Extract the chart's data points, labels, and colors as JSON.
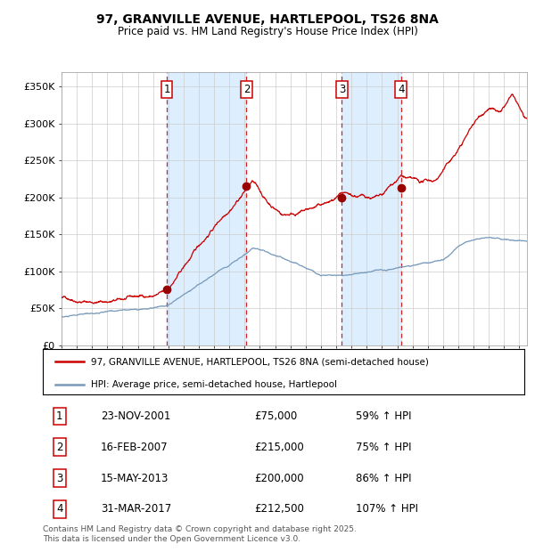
{
  "title": "97, GRANVILLE AVENUE, HARTLEPOOL, TS26 8NA",
  "subtitle": "Price paid vs. HM Land Registry's House Price Index (HPI)",
  "legend_line1": "97, GRANVILLE AVENUE, HARTLEPOOL, TS26 8NA (semi-detached house)",
  "legend_line2": "HPI: Average price, semi-detached house, Hartlepool",
  "footer": "Contains HM Land Registry data © Crown copyright and database right 2025.\nThis data is licensed under the Open Government Licence v3.0.",
  "transactions": [
    {
      "num": 1,
      "date": "23-NOV-2001",
      "price": 75000,
      "pct": "59%",
      "dir": "↑"
    },
    {
      "num": 2,
      "date": "16-FEB-2007",
      "price": 215000,
      "pct": "75%",
      "dir": "↑"
    },
    {
      "num": 3,
      "date": "15-MAY-2013",
      "price": 200000,
      "pct": "86%",
      "dir": "↑"
    },
    {
      "num": 4,
      "date": "31-MAR-2017",
      "price": 212500,
      "pct": "107%",
      "dir": "↑"
    }
  ],
  "transaction_dates_decimal": [
    2001.9,
    2007.12,
    2013.37,
    2017.25
  ],
  "dot_prices": [
    75000,
    215000,
    200000,
    212500
  ],
  "hpi_color": "#7799bb",
  "price_color": "#cc0000",
  "dot_color": "#990000",
  "vline_color": "#cc0000",
  "shade_color": "#ddeeff",
  "grid_color": "#cccccc",
  "background_color": "#ffffff",
  "ylim": [
    0,
    370000
  ],
  "yticks": [
    0,
    50000,
    100000,
    150000,
    200000,
    250000,
    300000,
    350000
  ],
  "ytick_labels": [
    "£0",
    "£50K",
    "£100K",
    "£150K",
    "£200K",
    "£250K",
    "£300K",
    "£350K"
  ],
  "xstart": 1995.0,
  "xend": 2025.5,
  "title_fontsize": 10,
  "subtitle_fontsize": 8.5,
  "tick_fontsize": 8,
  "legend_fontsize": 7.5,
  "table_fontsize": 8.5,
  "footer_fontsize": 6.5
}
